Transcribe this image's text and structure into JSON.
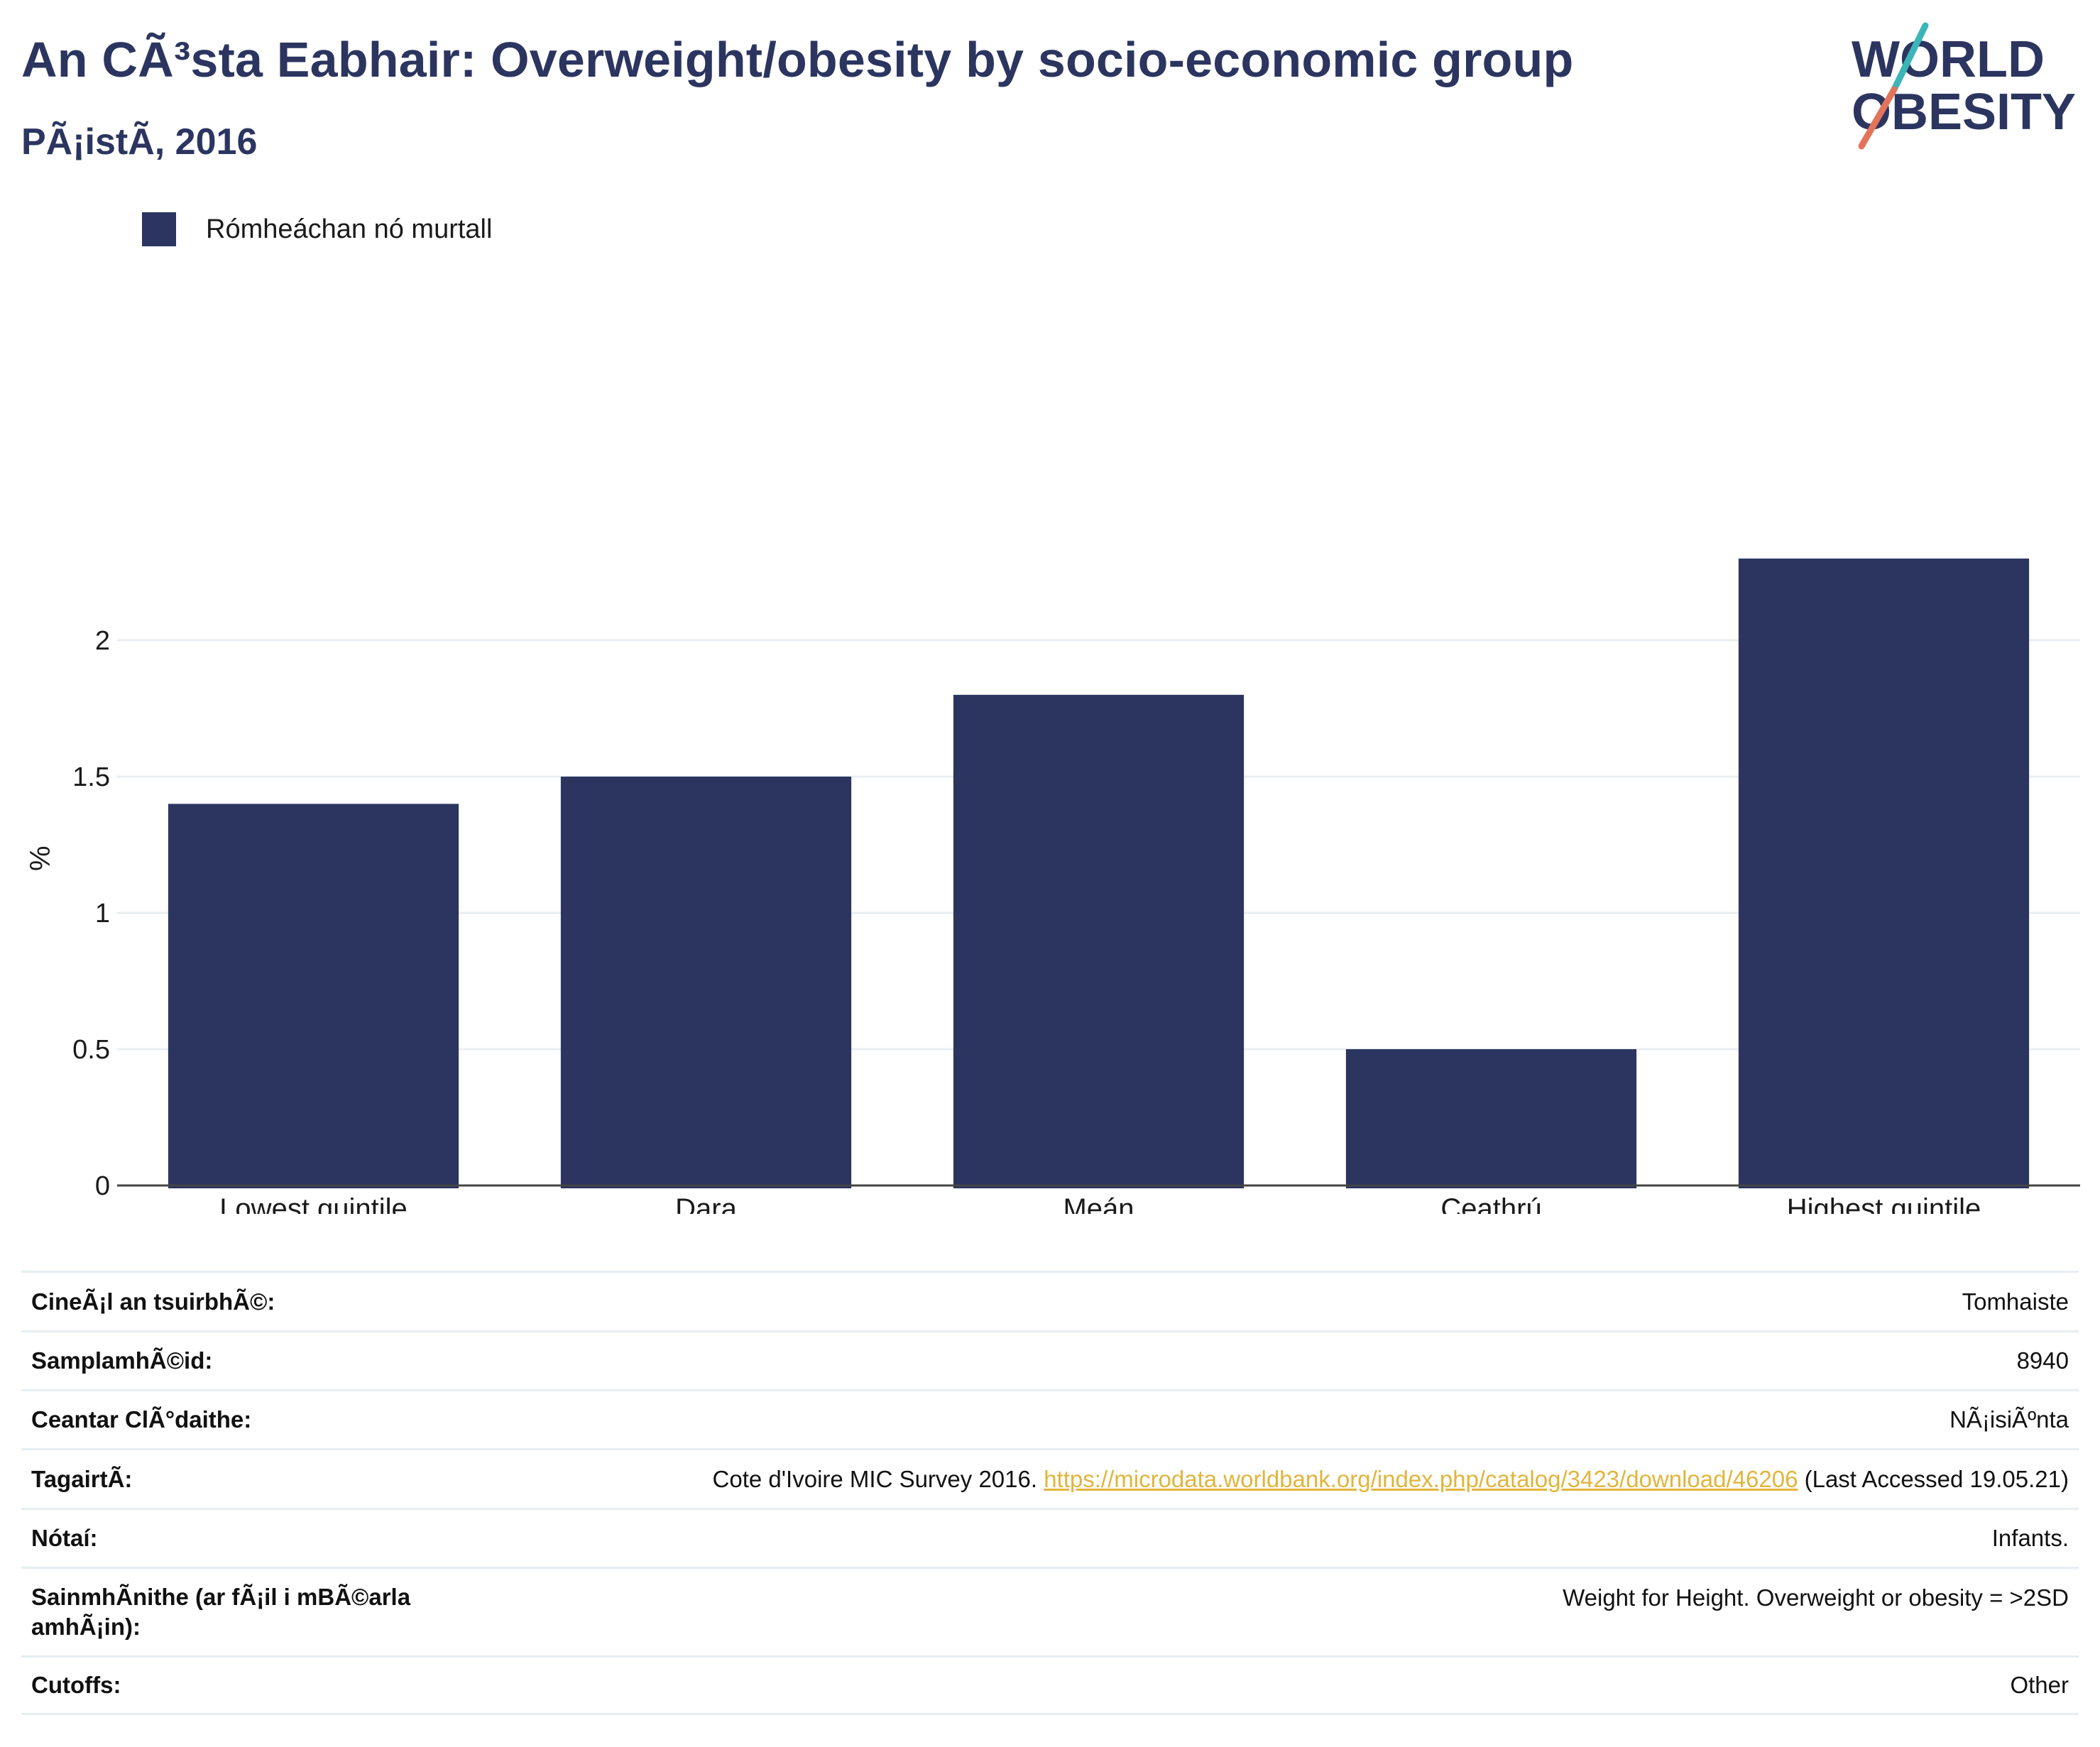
{
  "header": {
    "title": "An CÃ³sta Eabhair: Overweight/obesity by socio-economic group",
    "subtitle": "PÃ¡istÃ, 2016"
  },
  "logo": {
    "line1": "WORLD",
    "line2": "OBESITY",
    "colors": {
      "text": "#2b3560",
      "slash_top": "#3bb5b9",
      "slash_bottom": "#e4735b"
    }
  },
  "legend": {
    "label": "Rómheáchan nó murtall",
    "color": "#2b3560"
  },
  "chart_data": {
    "type": "bar",
    "categories": [
      "Lowest quintile",
      "Dara",
      "Meán",
      "Ceathrú",
      "Highest quintile"
    ],
    "series": [
      {
        "name": "Rómheáchan nó murtall",
        "values": [
          1.4,
          1.5,
          1.8,
          0.5,
          2.3
        ],
        "color": "#2b3560"
      }
    ],
    "ylabel": "%",
    "xlabel": "",
    "ylim": [
      0,
      2.5
    ],
    "yticks": [
      0,
      0.5,
      1,
      1.5,
      2
    ],
    "ytick_labels": [
      "0",
      "0.5",
      "1",
      "1.5",
      "2"
    ],
    "grid": true,
    "legend_position": "top-left"
  },
  "metadata": {
    "rows": [
      {
        "key": "CineÃ¡l an tsuirbhÃ©:",
        "value": "Tomhaiste"
      },
      {
        "key": "SamplamhÃ©id:",
        "value": "8940"
      },
      {
        "key": "Ceantar ClÃ°daithe:",
        "value": "NÃ¡isiÃºnta"
      },
      {
        "key": "TagairtÃ:",
        "value_prefix": "Cote d'Ivoire MIC Survey 2016. ",
        "link": "https://microdata.worldbank.org/index.php/catalog/3423/download/46206",
        "value_suffix": " (Last Accessed 19.05.21)"
      },
      {
        "key": "Nótaí:",
        "value": "Infants."
      },
      {
        "key": "SainmhÃnithe (ar fÃ¡il i mBÃ©arla amhÃ¡in):",
        "value": "Weight for Height. Overweight or obesity = >2SD"
      },
      {
        "key": "Cutoffs:",
        "value": "Other"
      }
    ]
  }
}
